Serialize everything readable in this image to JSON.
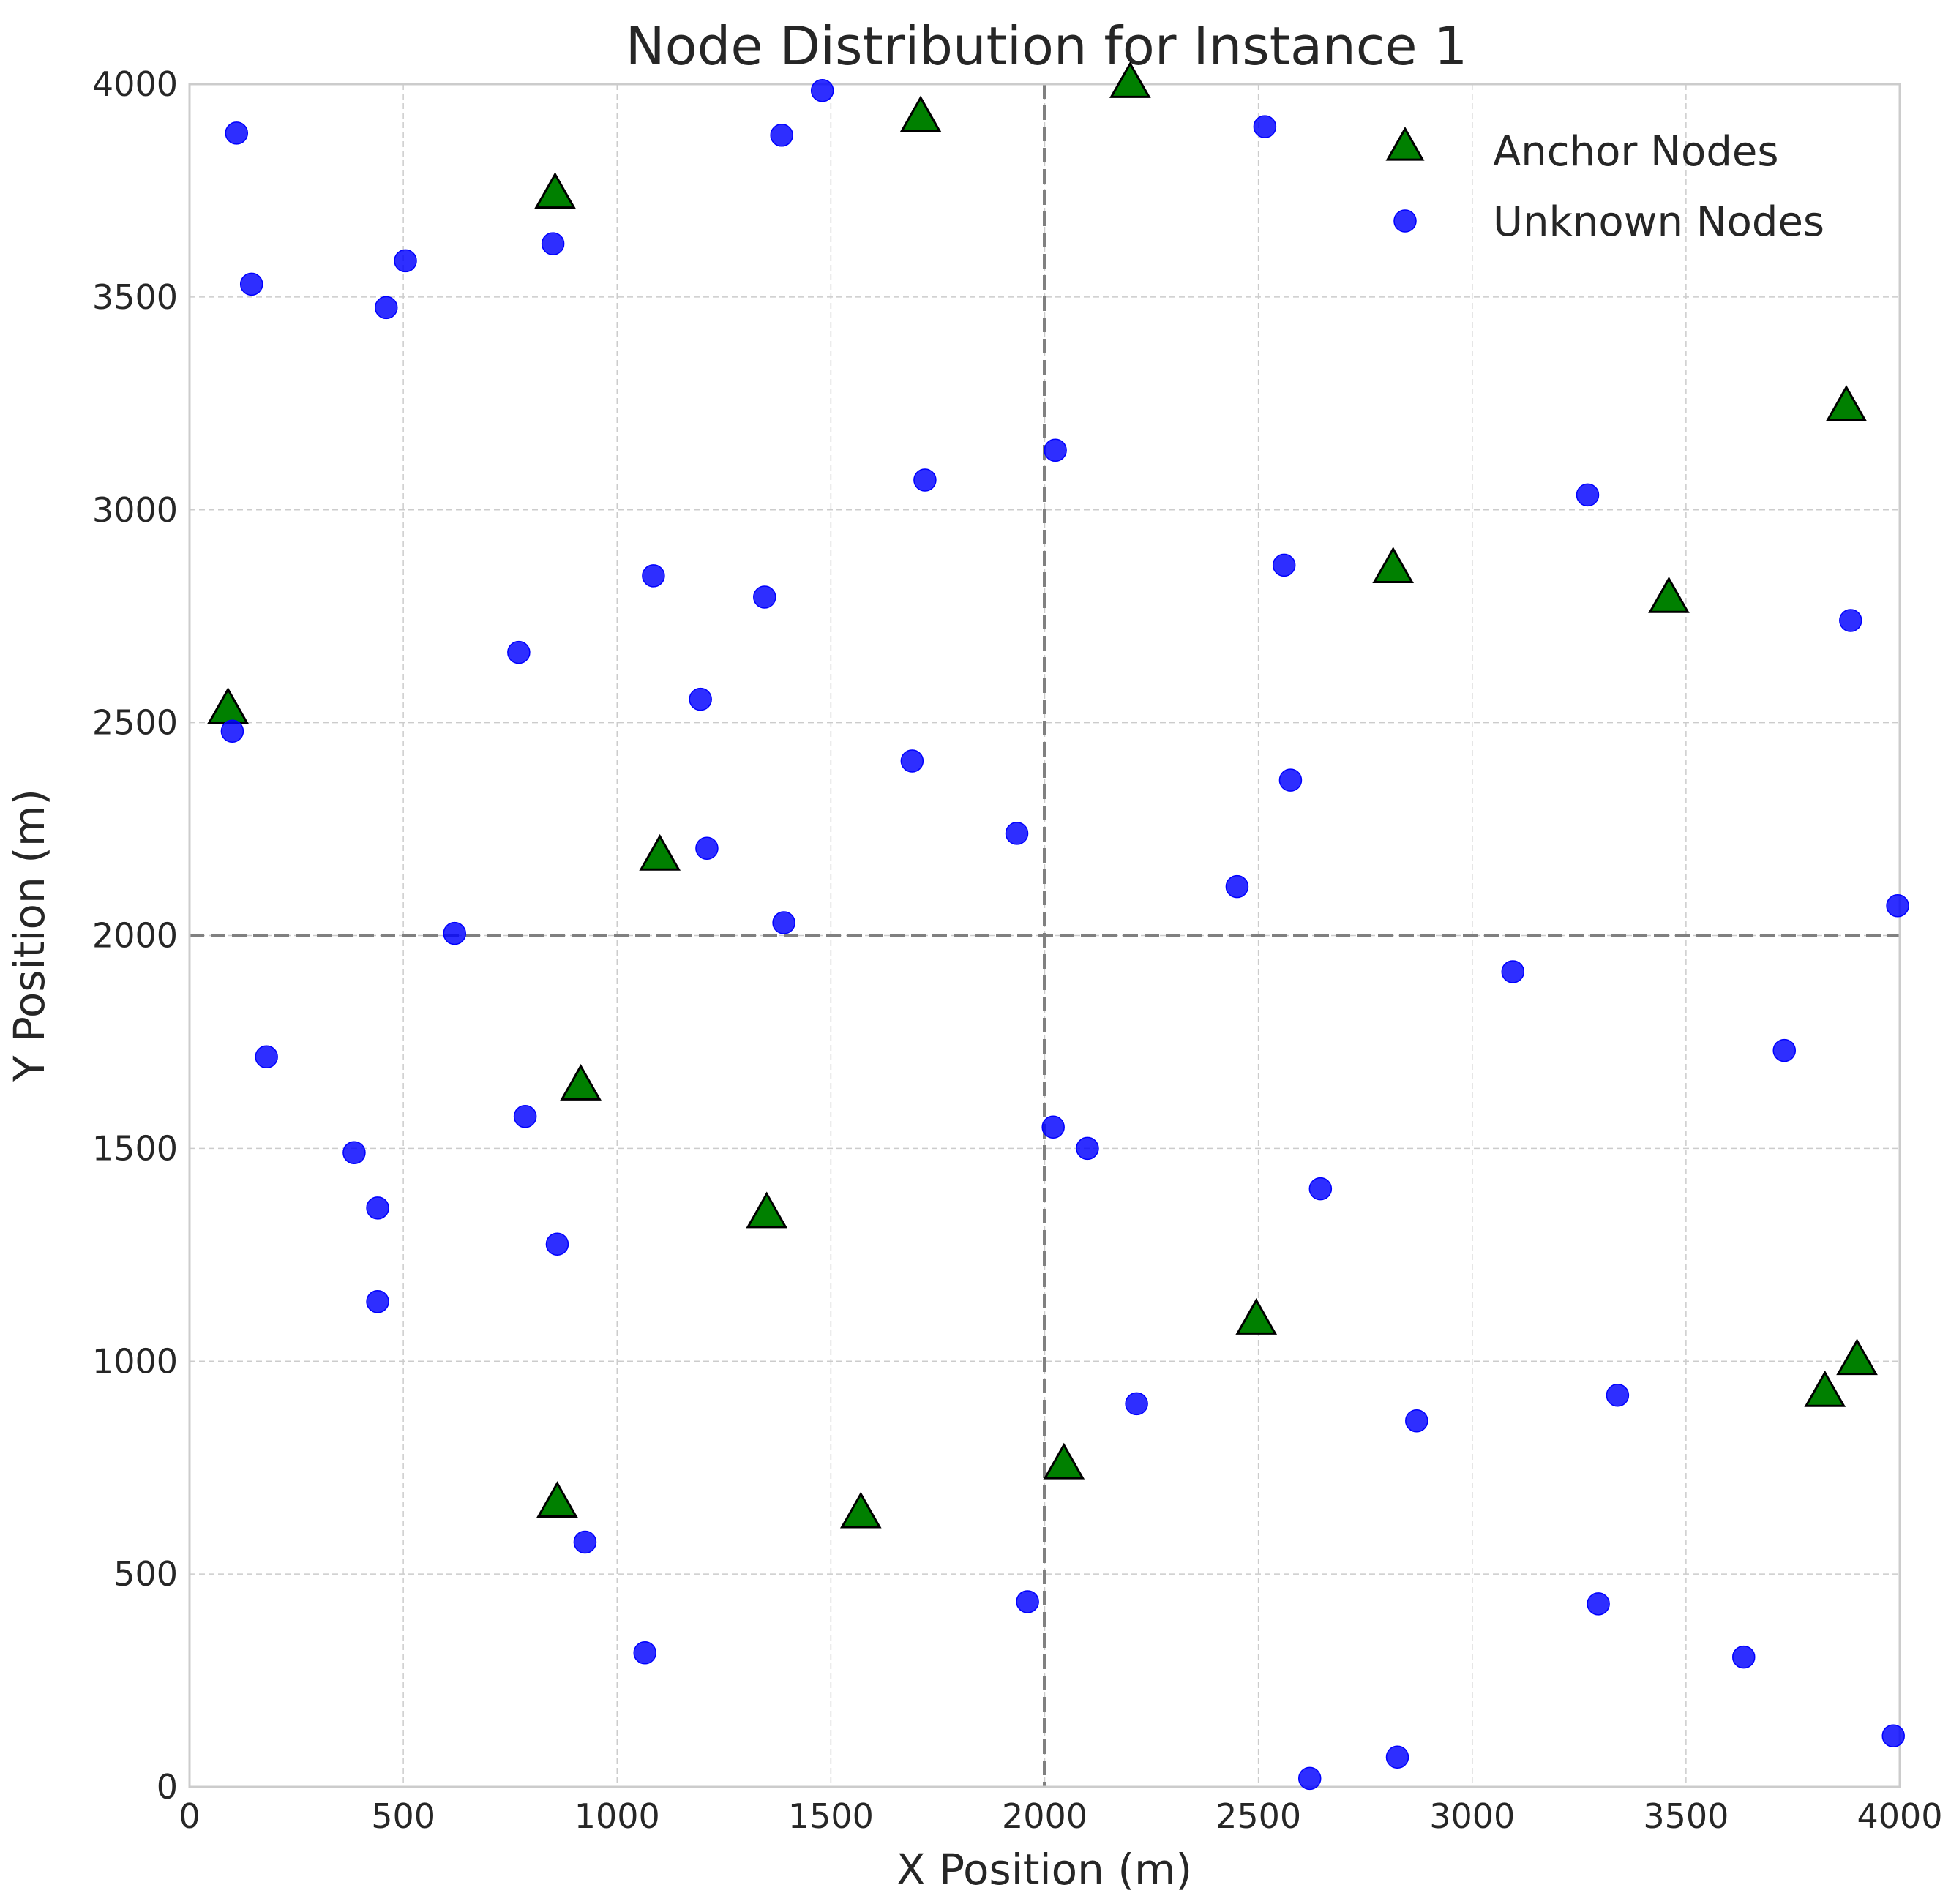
{
  "chart_data": {
    "type": "scatter",
    "title": "Node Distribution for Instance 1",
    "xlabel": "X Position (m)",
    "ylabel": "Y Position (m)",
    "xlim": [
      0,
      4000
    ],
    "ylim": [
      0,
      4000
    ],
    "xticks": [
      0,
      500,
      1000,
      1500,
      2000,
      2500,
      3000,
      3500,
      4000
    ],
    "yticks": [
      0,
      500,
      1000,
      1500,
      2000,
      2500,
      3000,
      3500,
      4000
    ],
    "grid": true,
    "legend_position": "top-right",
    "reference_lines": [
      {
        "orientation": "vertical",
        "value": 2000,
        "style": "dashed"
      },
      {
        "orientation": "horizontal",
        "value": 2000,
        "style": "dashed"
      }
    ],
    "series": [
      {
        "name": "Anchor Nodes",
        "marker": "triangle",
        "color": "#008000",
        "points": [
          [
            2200,
            4000
          ],
          [
            1710,
            3920
          ],
          [
            855,
            3740
          ],
          [
            3875,
            3240
          ],
          [
            2815,
            2860
          ],
          [
            3460,
            2790
          ],
          [
            90,
            2530
          ],
          [
            1100,
            2185
          ],
          [
            915,
            1645
          ],
          [
            1350,
            1345
          ],
          [
            2495,
            1095
          ],
          [
            3900,
            1000
          ],
          [
            3825,
            925
          ],
          [
            2045,
            755
          ],
          [
            860,
            665
          ],
          [
            1570,
            640
          ]
        ]
      },
      {
        "name": "Unknown Nodes",
        "marker": "circle",
        "color": "#0000ff",
        "points": [
          [
            1480,
            3985
          ],
          [
            110,
            3885
          ],
          [
            2515,
            3900
          ],
          [
            1385,
            3880
          ],
          [
            850,
            3625
          ],
          [
            505,
            3585
          ],
          [
            145,
            3530
          ],
          [
            460,
            3475
          ],
          [
            2025,
            3140
          ],
          [
            1720,
            3070
          ],
          [
            3270,
            3035
          ],
          [
            2560,
            2870
          ],
          [
            1085,
            2845
          ],
          [
            1345,
            2795
          ],
          [
            3885,
            2740
          ],
          [
            770,
            2665
          ],
          [
            1195,
            2555
          ],
          [
            100,
            2480
          ],
          [
            1690,
            2410
          ],
          [
            2575,
            2365
          ],
          [
            1935,
            2240
          ],
          [
            1210,
            2205
          ],
          [
            2450,
            2115
          ],
          [
            3995,
            2070
          ],
          [
            1390,
            2030
          ],
          [
            620,
            2005
          ],
          [
            3095,
            1915
          ],
          [
            180,
            1715
          ],
          [
            3730,
            1730
          ],
          [
            785,
            1575
          ],
          [
            2020,
            1550
          ],
          [
            2100,
            1500
          ],
          [
            385,
            1490
          ],
          [
            2645,
            1405
          ],
          [
            440,
            1360
          ],
          [
            860,
            1275
          ],
          [
            440,
            1140
          ],
          [
            3340,
            920
          ],
          [
            2215,
            900
          ],
          [
            2870,
            860
          ],
          [
            925,
            575
          ],
          [
            1960,
            435
          ],
          [
            3295,
            430
          ],
          [
            1065,
            315
          ],
          [
            3635,
            305
          ],
          [
            3985,
            120
          ],
          [
            2825,
            70
          ],
          [
            2620,
            20
          ]
        ]
      }
    ]
  }
}
